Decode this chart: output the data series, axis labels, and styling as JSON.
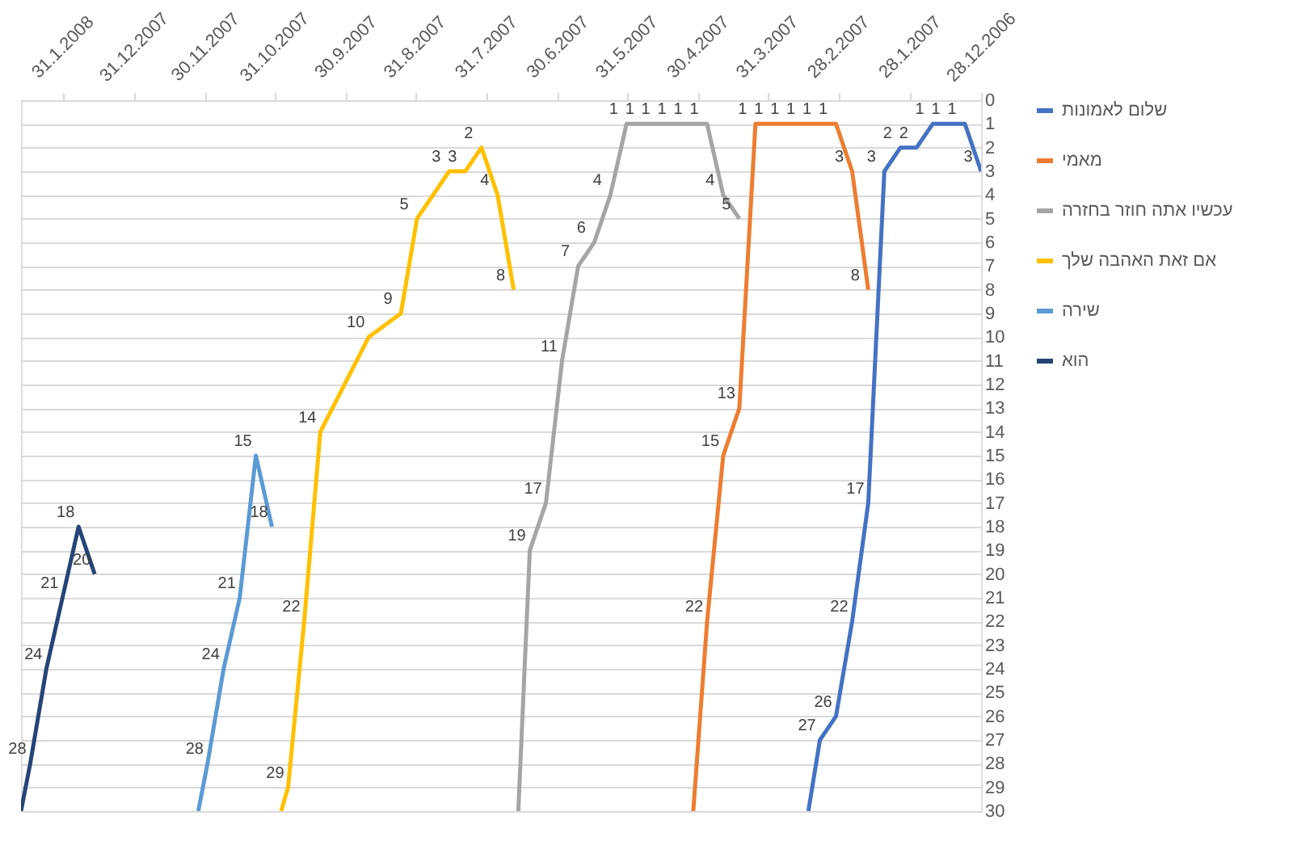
{
  "chart_data": {
    "type": "line",
    "legend": "right",
    "grid": "y",
    "marker": "none",
    "line_style": "solid",
    "xlim": [
      "2008-02-18",
      "2006-12-28"
    ],
    "ylim": [
      30,
      0
    ],
    "yticks": [
      0,
      1,
      2,
      3,
      4,
      5,
      6,
      7,
      8,
      9,
      10,
      11,
      12,
      13,
      14,
      15,
      16,
      17,
      18,
      19,
      20,
      21,
      22,
      23,
      24,
      25,
      26,
      27,
      28,
      29,
      30
    ],
    "xticks": [
      {
        "value": "2006-12-28",
        "label": "28.12.2006"
      },
      {
        "value": "2007-01-28",
        "label": "28.1.2007"
      },
      {
        "value": "2007-02-28",
        "label": "28.2.2007"
      },
      {
        "value": "2007-03-31",
        "label": "31.3.2007"
      },
      {
        "value": "2007-04-30",
        "label": "30.4.2007"
      },
      {
        "value": "2007-05-31",
        "label": "31.5.2007"
      },
      {
        "value": "2007-06-30",
        "label": "30.6.2007"
      },
      {
        "value": "2007-07-31",
        "label": "31.7.2007"
      },
      {
        "value": "2007-08-31",
        "label": "31.8.2007"
      },
      {
        "value": "2007-09-30",
        "label": "30.9.2007"
      },
      {
        "value": "2007-10-31",
        "label": "31.10.2007"
      },
      {
        "value": "2007-11-30",
        "label": "30.11.2007"
      },
      {
        "value": "2007-12-31",
        "label": "31.12.2007"
      },
      {
        "value": "2008-01-31",
        "label": "31.1.2008"
      }
    ],
    "series": [
      {
        "name": "שלום לאמונות",
        "color": "#4472c4",
        "x": [
          "2006-12-28",
          "2007-01-04",
          "2007-01-11",
          "2007-01-18",
          "2007-01-25",
          "2007-02-01",
          "2007-02-08",
          "2007-02-15",
          "2007-02-22",
          "2007-03-01",
          "2007-03-08",
          "2007-03-13"
        ],
        "values": [
          3,
          1,
          1,
          1,
          2,
          2,
          3,
          17,
          22,
          26,
          27,
          30
        ],
        "value_labels": [
          "3",
          "1",
          "1",
          "1",
          "2",
          "2",
          "3",
          "17",
          "22",
          "26",
          "27",
          null
        ]
      },
      {
        "name": "מאמי",
        "color": "#ed7d31",
        "x": [
          "2007-02-15",
          "2007-02-22",
          "2007-03-01",
          "2007-03-08",
          "2007-03-15",
          "2007-03-22",
          "2007-03-29",
          "2007-04-05",
          "2007-04-12",
          "2007-04-19",
          "2007-04-26",
          "2007-05-02"
        ],
        "values": [
          8,
          3,
          1,
          1,
          1,
          1,
          1,
          1,
          13,
          15,
          22,
          30
        ],
        "value_labels": [
          "8",
          "3",
          "1",
          "1",
          "1",
          "1",
          "1",
          "1",
          "13",
          "15",
          "22",
          null
        ]
      },
      {
        "name": "עכשיו אתה חוזר בחזרה",
        "color": "#a5a5a5",
        "x": [
          "2007-04-12",
          "2007-04-19",
          "2007-04-26",
          "2007-05-03",
          "2007-05-10",
          "2007-05-17",
          "2007-05-24",
          "2007-05-31",
          "2007-06-07",
          "2007-06-14",
          "2007-06-21",
          "2007-06-28",
          "2007-07-05",
          "2007-07-12",
          "2007-07-17"
        ],
        "values": [
          5,
          4,
          1,
          1,
          1,
          1,
          1,
          1,
          4,
          6,
          7,
          11,
          17,
          19,
          30
        ],
        "value_labels": [
          "5",
          "4",
          "1",
          "1",
          "1",
          "1",
          "1",
          "1",
          "4",
          "6",
          "7",
          "11",
          "17",
          "19",
          null
        ]
      },
      {
        "name": "אם זאת האהבה שלך",
        "color": "#ffc000",
        "x": [
          "2007-07-19",
          "2007-07-26",
          "2007-08-02",
          "2007-08-09",
          "2007-08-16",
          "2007-08-30",
          "2007-09-06",
          "2007-09-20",
          "2007-10-11",
          "2007-10-18",
          "2007-10-25",
          "2007-10-28"
        ],
        "values": [
          8,
          4,
          2,
          3,
          3,
          5,
          9,
          10,
          14,
          22,
          29,
          30
        ],
        "value_labels": [
          "8",
          "4",
          "2",
          "3",
          "3",
          "5",
          "9",
          "10",
          "14",
          "22",
          "29",
          null
        ]
      },
      {
        "name": "שירה",
        "color": "#5b9bd5",
        "x": [
          "2007-11-01",
          "2007-11-08",
          "2007-11-15",
          "2007-11-22",
          "2007-11-29",
          "2007-12-03"
        ],
        "values": [
          18,
          15,
          21,
          24,
          28,
          30
        ],
        "value_labels": [
          "18",
          "15",
          "21",
          "24",
          "28",
          null
        ]
      },
      {
        "name": "הוא",
        "color": "#264478",
        "x": [
          "2008-01-17",
          "2008-01-24",
          "2008-01-31",
          "2008-02-07",
          "2008-02-14",
          "2008-02-18"
        ],
        "values": [
          20,
          18,
          21,
          24,
          28,
          30
        ],
        "value_labels": [
          "20",
          "18",
          "21",
          "24",
          "28",
          null
        ]
      }
    ]
  }
}
